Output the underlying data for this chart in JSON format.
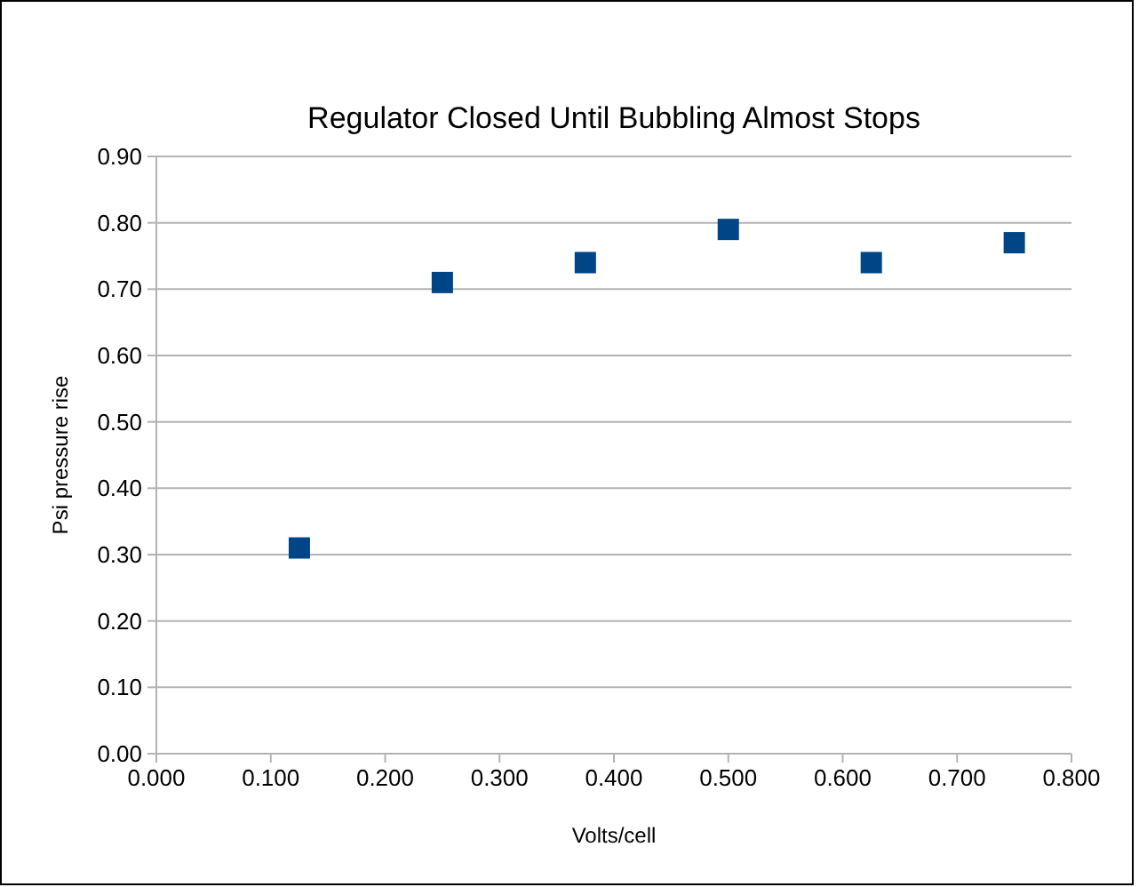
{
  "chart_data": {
    "type": "scatter",
    "title": "Regulator Closed Until Bubbling Almost Stops",
    "xlabel": "Volts/cell",
    "ylabel": "Psi pressure rise",
    "x": [
      0.125,
      0.25,
      0.375,
      0.5,
      0.625,
      0.75
    ],
    "series": [
      {
        "color": "#004586",
        "values": [
          0.31,
          0.71,
          0.74,
          0.79,
          0.74,
          0.77
        ]
      }
    ],
    "xlim": [
      0,
      0.8
    ],
    "xticks": [
      {
        "value": 0,
        "label": "0.000"
      },
      {
        "value": 0.1,
        "label": "0.100"
      },
      {
        "value": 0.2,
        "label": "0.200"
      },
      {
        "value": 0.3,
        "label": "0.300"
      },
      {
        "value": 0.4,
        "label": "0.400"
      },
      {
        "value": 0.5,
        "label": "0.500"
      },
      {
        "value": 0.6,
        "label": "0.600"
      },
      {
        "value": 0.7,
        "label": "0.700"
      },
      {
        "value": 0.8,
        "label": "0.800"
      }
    ],
    "ylim": [
      0,
      0.9
    ],
    "yticks": [
      {
        "value": 0,
        "label": "0.00"
      },
      {
        "value": 0.1,
        "label": "0.10"
      },
      {
        "value": 0.2,
        "label": "0.20"
      },
      {
        "value": 0.3,
        "label": "0.30"
      },
      {
        "value": 0.4,
        "label": "0.40"
      },
      {
        "value": 0.5,
        "label": "0.50"
      },
      {
        "value": 0.6,
        "label": "0.60"
      },
      {
        "value": 0.7,
        "label": "0.70"
      },
      {
        "value": 0.8,
        "label": "0.80"
      },
      {
        "value": 0.9,
        "label": "0.90"
      }
    ],
    "grid": "y",
    "marker": "square"
  }
}
